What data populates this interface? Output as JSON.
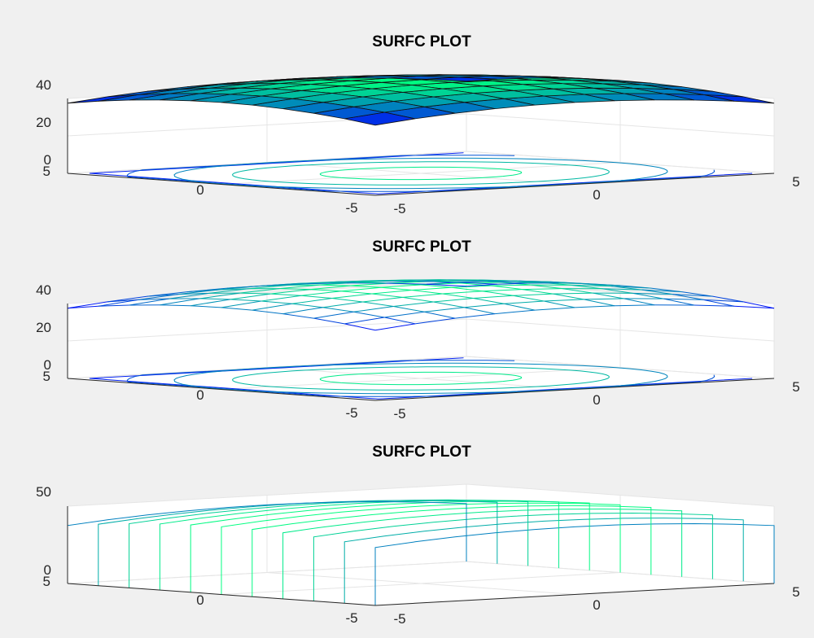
{
  "chart_data": [
    {
      "type": "surface",
      "style": "surface-with-contour",
      "title": "SURFC PLOT",
      "colormap": "winter",
      "function": "z = 50 - x^2/4 - y^2/4",
      "x": [
        -5,
        -4,
        -3,
        -2,
        -1,
        0,
        1,
        2,
        3,
        4,
        5
      ],
      "y": [
        -5,
        -4,
        -3,
        -2,
        -1,
        0,
        1,
        2,
        3,
        4,
        5
      ],
      "x_ticks": [
        "-5",
        "0",
        "5"
      ],
      "y_ticks": [
        "-5",
        "0",
        "5"
      ],
      "z_ticks": [
        "0",
        "20",
        "40"
      ],
      "xlim": [
        -5,
        5
      ],
      "ylim": [
        -5,
        5
      ],
      "zlim": [
        0,
        40
      ],
      "grid": true
    },
    {
      "type": "surface",
      "style": "mesh-with-contour",
      "title": "SURFC PLOT",
      "colormap": "winter",
      "function": "z = 50 - x^2/4 - y^2/4",
      "x": [
        -5,
        -4,
        -3,
        -2,
        -1,
        0,
        1,
        2,
        3,
        4,
        5
      ],
      "y": [
        -5,
        -4,
        -3,
        -2,
        -1,
        0,
        1,
        2,
        3,
        4,
        5
      ],
      "x_ticks": [
        "-5",
        "0",
        "5"
      ],
      "y_ticks": [
        "-5",
        "0",
        "5"
      ],
      "z_ticks": [
        "0",
        "20",
        "40"
      ],
      "xlim": [
        -5,
        5
      ],
      "ylim": [
        -5,
        5
      ],
      "zlim": [
        0,
        40
      ],
      "grid": true
    },
    {
      "type": "surface",
      "style": "waterfall",
      "title": "SURFC PLOT",
      "colormap": "winter",
      "function": "z = 50 - x^2/4 - y^2/4",
      "x": [
        -5,
        -4,
        -3,
        -2,
        -1,
        0,
        1,
        2,
        3,
        4,
        5
      ],
      "y": [
        -5,
        -4,
        -3,
        -2,
        -1,
        0,
        1,
        2,
        3,
        4,
        5
      ],
      "x_ticks": [
        "-5",
        "0",
        "5"
      ],
      "y_ticks": [
        "-5",
        "0",
        "5"
      ],
      "z_ticks": [
        "0",
        "50"
      ],
      "xlim": [
        -5,
        5
      ],
      "ylim": [
        -5,
        5
      ],
      "zlim": [
        0,
        50
      ],
      "grid": true
    }
  ]
}
